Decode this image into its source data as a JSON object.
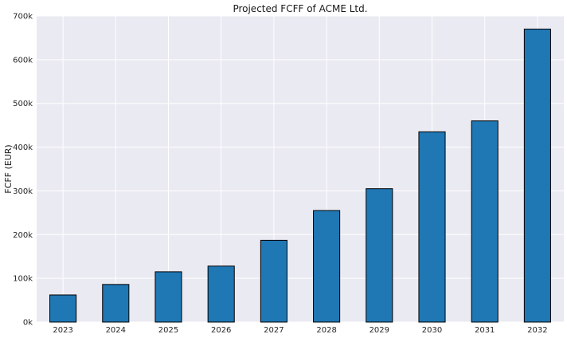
{
  "chart_data": {
    "type": "bar",
    "title": "Projected FCFF of ACME Ltd.",
    "xlabel": "",
    "ylabel": "FCFF (EUR)",
    "categories": [
      "2023",
      "2024",
      "2025",
      "2026",
      "2027",
      "2028",
      "2029",
      "2030",
      "2031",
      "2032"
    ],
    "values": [
      62000,
      86000,
      115000,
      128000,
      187000,
      255000,
      305000,
      435000,
      460000,
      670000
    ],
    "ylim": [
      0,
      700000
    ],
    "yticks": [
      0,
      100000,
      200000,
      300000,
      400000,
      500000,
      600000,
      700000
    ],
    "ytick_labels": [
      "0k",
      "100k",
      "200k",
      "300k",
      "400k",
      "500k",
      "600k",
      "700k"
    ],
    "grid": true,
    "legend": "none",
    "colors": {
      "bar_fill": "#1f77b4",
      "bar_edge": "#000000",
      "plot_background": "#eaeaf2",
      "grid": "#ffffff"
    }
  }
}
